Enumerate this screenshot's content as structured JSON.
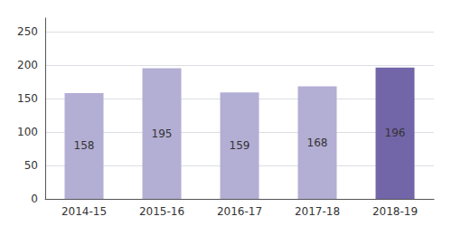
{
  "chart_data": {
    "type": "bar",
    "categories": [
      "2014-15",
      "2015-16",
      "2016-17",
      "2017-18",
      "2018-19"
    ],
    "values": [
      158,
      195,
      159,
      168,
      196
    ],
    "colors": [
      "#b3aed4",
      "#b3aed4",
      "#b3aed4",
      "#b3aed4",
      "#7265a8"
    ],
    "ylim": [
      0,
      270
    ],
    "yticks": [
      0,
      50,
      100,
      150,
      200,
      250
    ],
    "grid": true,
    "data_labels": true
  }
}
